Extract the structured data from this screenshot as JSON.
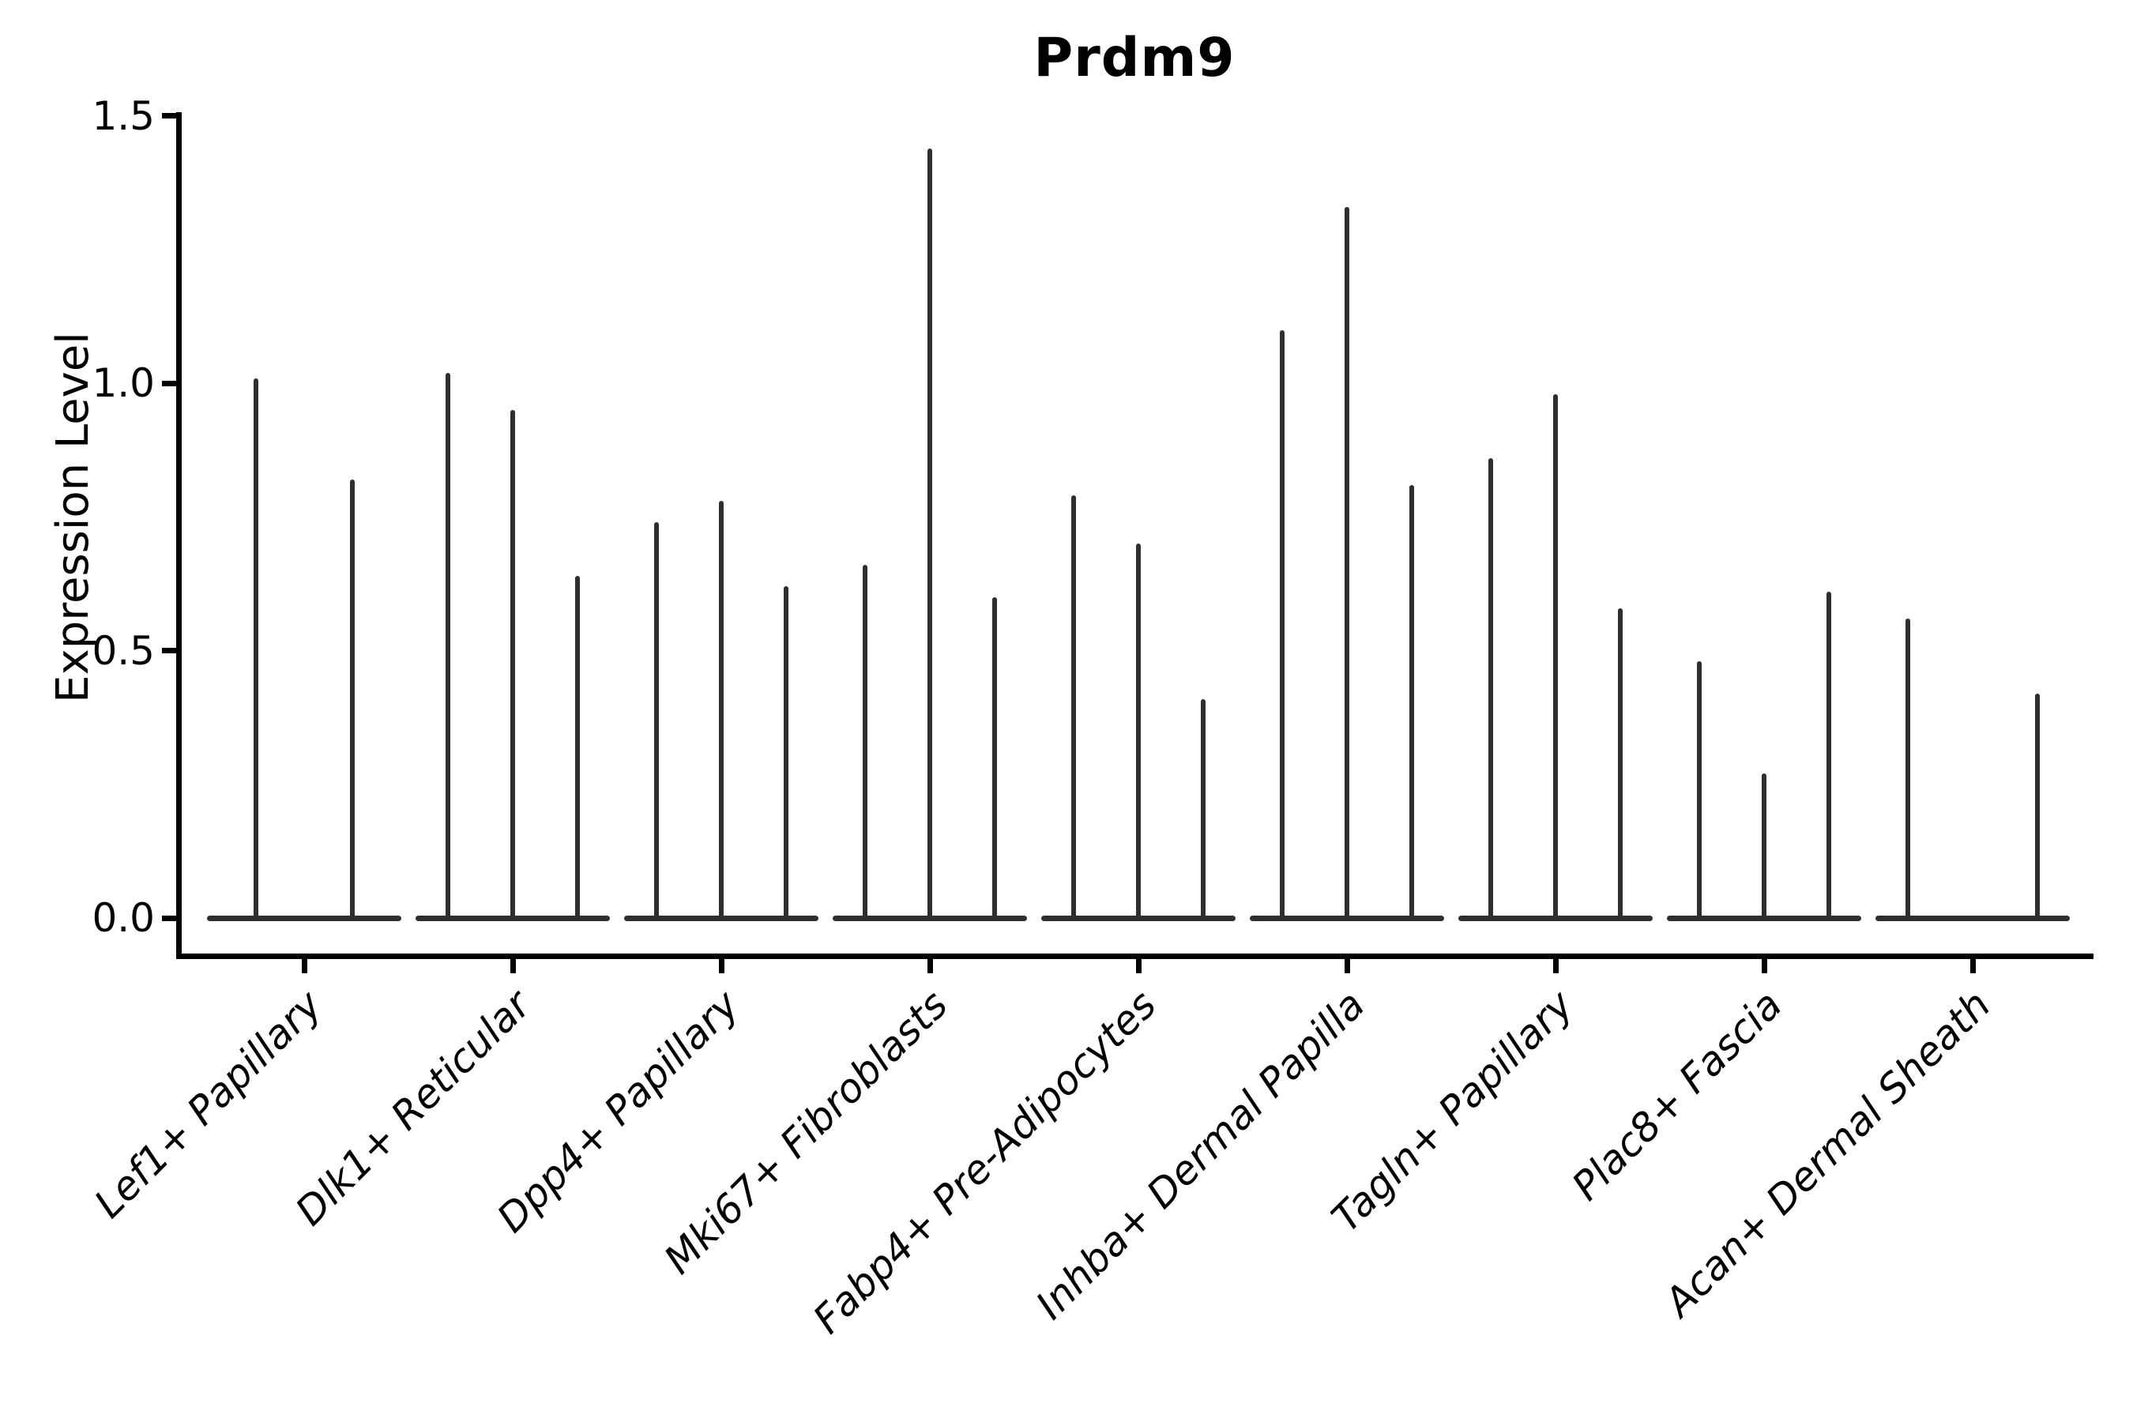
{
  "figure": {
    "background_color": "#ffffff",
    "violin_color": "#2e2e2e",
    "axis_color": "#000000"
  },
  "chart_data": {
    "type": "violin",
    "title": "Prdm9",
    "xlabel": "",
    "ylabel": "Expression Level",
    "grid": false,
    "legend": "none",
    "ylim": [
      -0.07,
      1.57
    ],
    "yticks": [
      {
        "label": "1.5",
        "value": 1.5
      },
      {
        "label": "1.0",
        "value": 1.0
      },
      {
        "label": "0.5",
        "value": 0.5
      },
      {
        "label": "0.0",
        "value": 0.0
      }
    ],
    "categories": [
      "Lef1+ Papillary",
      "Dlk1+ Reticular",
      "Dpp4+ Papillary",
      "Mki67+ Fibroblasts",
      "Fabp4+ Pre-Adipocytes",
      "Inhba+ Dermal Papilla",
      "Tagln+ Papillary",
      "Plac8+ Fascia",
      "Acan+ Dermal Sheath"
    ],
    "series_note": "Each category shows narrow spike-shaped violins (expression mostly 0, thin tail up to max). Values are the peak expression level of each violin; null = flat violin at 0.",
    "violins": [
      {
        "category": "Lef1+ Papillary",
        "peak_values": [
          1.01,
          0.82
        ]
      },
      {
        "category": "Dlk1+ Reticular",
        "peak_values": [
          1.02,
          0.95,
          0.64
        ]
      },
      {
        "category": "Dpp4+ Papillary",
        "peak_values": [
          0.74,
          0.78,
          0.62
        ]
      },
      {
        "category": "Mki67+ Fibroblasts",
        "peak_values": [
          0.66,
          1.44,
          0.6
        ]
      },
      {
        "category": "Fabp4+ Pre-Adipocytes",
        "peak_values": [
          0.79,
          0.7,
          0.41
        ]
      },
      {
        "category": "Inhba+ Dermal Papilla",
        "peak_values": [
          1.1,
          1.33,
          0.81
        ]
      },
      {
        "category": "Tagln+ Papillary",
        "peak_values": [
          0.86,
          0.98,
          0.58
        ]
      },
      {
        "category": "Plac8+ Fascia",
        "peak_values": [
          0.48,
          0.27,
          0.61
        ]
      },
      {
        "category": "Acan+ Dermal Sheath",
        "peak_values": [
          0.56,
          null,
          0.42
        ]
      }
    ]
  }
}
